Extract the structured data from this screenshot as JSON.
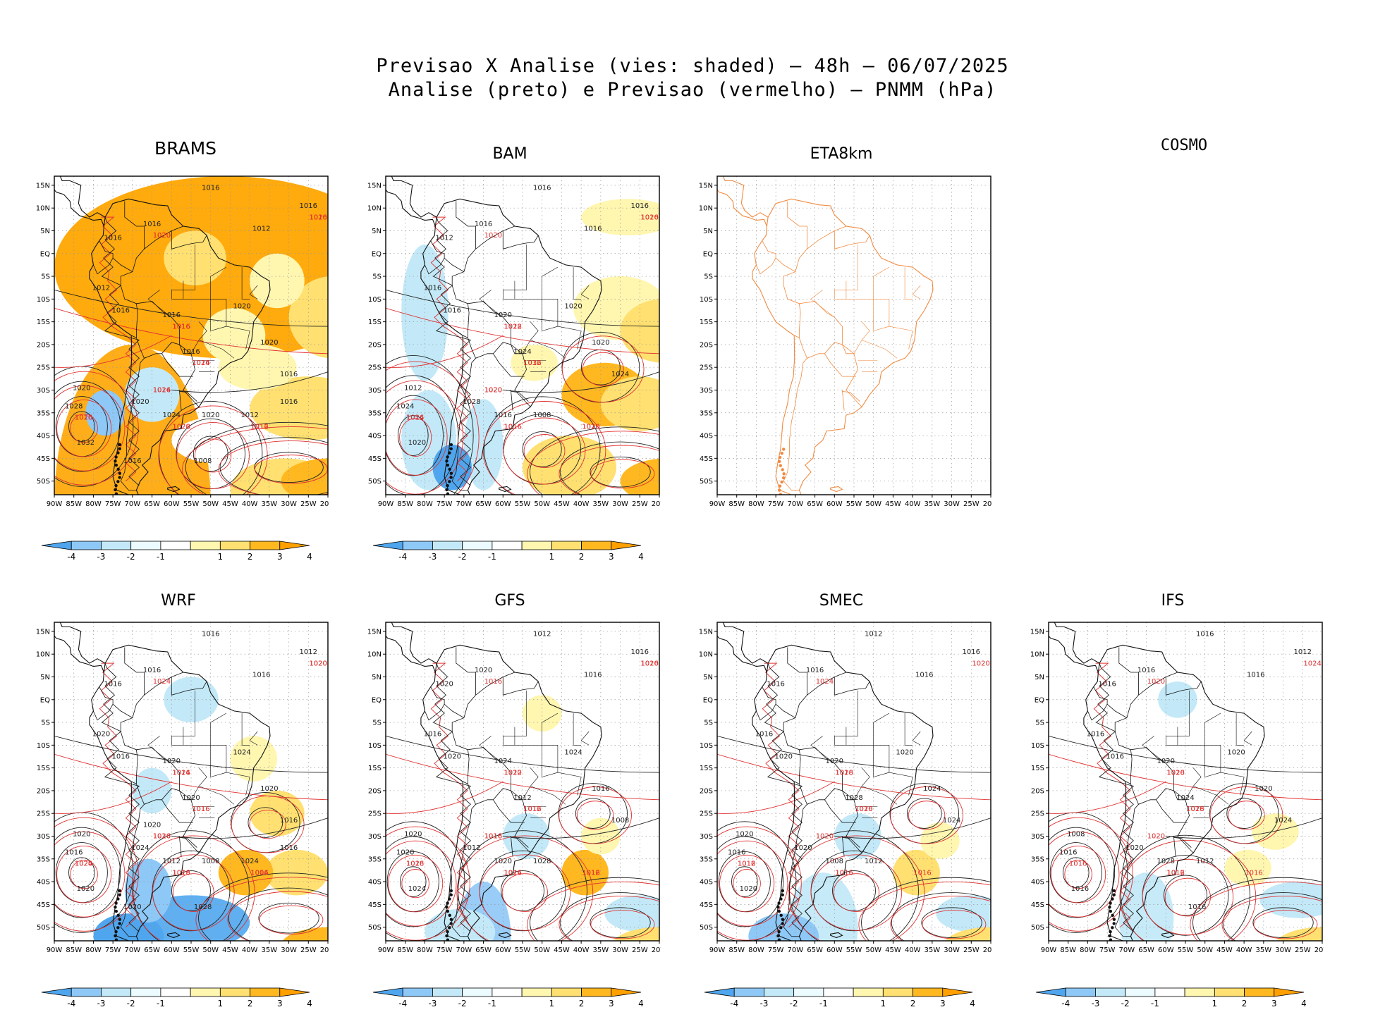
{
  "header": {
    "line1": "Previsao X Analise (vies: shaded) – 48h – 06/07/2025",
    "line2": "Analise (preto) e Previsao (vermelho) – PNMM (hPa)"
  },
  "axes": {
    "lat_labels": [
      "15N",
      "10N",
      "5N",
      "EQ",
      "5S",
      "10S",
      "15S",
      "20S",
      "25S",
      "30S",
      "35S",
      "40S",
      "45S",
      "50S"
    ],
    "lon_labels": [
      "90W",
      "85W",
      "80W",
      "75W",
      "70W",
      "65W",
      "60W",
      "55W",
      "50W",
      "45W",
      "40W",
      "35W",
      "30W",
      "25W",
      "20W"
    ]
  },
  "colorbar": {
    "labels": [
      "-4",
      "-3",
      "-2",
      "-1",
      "1",
      "2",
      "3",
      "4"
    ],
    "colors": [
      "#4fa6ee",
      "#8ec8f6",
      "#c3e9f8",
      "#ebfbff",
      "#ffffff",
      "#fff6b0",
      "#ffe070",
      "#ffb820",
      "#ffa000"
    ]
  },
  "colors": {
    "analysis": "#222222",
    "forecast": "#e03030",
    "coast": "#111111",
    "coast_eta": "#f08a40",
    "grid": "#999999"
  },
  "panels": [
    {
      "id": "brams",
      "title": "BRAMS",
      "has_data": true,
      "big_title": true,
      "analysis_labels": [
        "1016",
        "1016",
        "1012",
        "1016",
        "1016",
        "1012",
        "1016",
        "1016",
        "1020",
        "1020",
        "1016",
        "1016",
        "1020",
        "1024",
        "1020",
        "1020",
        "1028",
        "1032",
        "1008",
        "1012",
        "1016",
        "1016"
      ],
      "forecast_labels": [
        "1016",
        "1016",
        "1020",
        "1016",
        "1016",
        "1024",
        "1020",
        "1020",
        "1016",
        "1024",
        "1028",
        "1020",
        "1012",
        "1016",
        "1016",
        "1020",
        "1016"
      ]
    },
    {
      "id": "bam",
      "title": "BAM",
      "has_data": true,
      "analysis_labels": [
        "1016",
        "1016",
        "1016",
        "1012",
        "1016",
        "1016",
        "1016",
        "1020",
        "1020",
        "1020",
        "1024",
        "1024",
        "1028",
        "1016",
        "1008",
        "1012",
        "1024",
        "1020"
      ],
      "forecast_labels": [
        "1012",
        "1016",
        "1016",
        "1016",
        "1016",
        "1020",
        "1020",
        "1020",
        "1028",
        "1032",
        "1016",
        "1024",
        "1020",
        "1020",
        "1016"
      ]
    },
    {
      "id": "eta8km",
      "title": "ETA8km",
      "has_data": false,
      "coast_style": "eta"
    },
    {
      "id": "cosmo",
      "title": "COSMO",
      "has_data": false,
      "empty": true
    },
    {
      "id": "wrf",
      "title": "WRF",
      "has_data": true,
      "analysis_labels": [
        "1016",
        "1012",
        "1016",
        "1016",
        "1016",
        "1020",
        "1016",
        "1020",
        "1024",
        "1020",
        "1020",
        "1016",
        "1024",
        "1012",
        "1008",
        "1020",
        "1016",
        "1020",
        "1028",
        "1024",
        "1016",
        "1020",
        "1020"
      ],
      "forecast_labels": [
        "1016",
        "1016",
        "1016",
        "1020",
        "1016",
        "1020",
        "1020",
        "1024",
        "1024",
        "1016",
        "1028",
        "1024",
        "1004",
        "1016",
        "1020"
      ]
    },
    {
      "id": "gfs",
      "title": "GFS",
      "has_data": true,
      "analysis_labels": [
        "1012",
        "1016",
        "1016",
        "1020",
        "1020",
        "1016",
        "1020",
        "1024",
        "1024",
        "1016",
        "1012",
        "1008",
        "1012",
        "1020",
        "1028",
        "1020",
        "1020",
        "1024"
      ],
      "forecast_labels": [
        "1012",
        "1012",
        "1016",
        "1016",
        "1016",
        "1016",
        "1016",
        "1016",
        "1020",
        "1016",
        "1024",
        "1028",
        "1012",
        "1016",
        "1020"
      ]
    },
    {
      "id": "smec",
      "title": "SMEC",
      "has_data": true,
      "analysis_labels": [
        "1012",
        "1016",
        "1016",
        "1016",
        "1016",
        "1016",
        "1020",
        "1020",
        "1020",
        "1024",
        "1028",
        "1024",
        "1020",
        "1008",
        "1012",
        "1020",
        "1016",
        "1020"
      ],
      "forecast_labels": [
        "1016",
        "1016",
        "1016",
        "1016",
        "1016",
        "1020",
        "1020",
        "1024",
        "1028",
        "1020",
        "1016",
        "1012"
      ]
    },
    {
      "id": "ifs",
      "title": "IFS",
      "has_data": true,
      "analysis_labels": [
        "1016",
        "1012",
        "1016",
        "1016",
        "1016",
        "1016",
        "1016",
        "1020",
        "1020",
        "1020",
        "1024",
        "1024",
        "1020",
        "1028",
        "1012",
        "1008",
        "1016",
        "1016",
        "1016"
      ],
      "forecast_labels": [
        "1016",
        "1016",
        "1016",
        "1016",
        "1016",
        "1020",
        "1024",
        "1020",
        "1020",
        "1028",
        "1012"
      ]
    }
  ]
}
